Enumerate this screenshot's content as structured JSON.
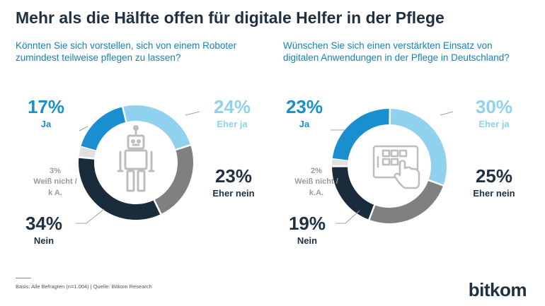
{
  "title": "Mehr als die Hälfte offen für digitale Helfer in der Pflege",
  "colors": {
    "ja": "#1a8fd0",
    "eher_ja": "#8fd1ee",
    "eher_nein": "#808080",
    "nein": "#1a2b3c",
    "weiss_nicht": "#e0e0e0",
    "question": "#1583b8",
    "dark": "#1f3042"
  },
  "icons": [
    "robot-icon",
    "tablet-hand-icon"
  ],
  "chart_data": [
    {
      "type": "pie",
      "donut": true,
      "title": "Könnten Sie sich vorstellen, sich von einem Roboter zumindest teilweise pflegen zu lassen?",
      "slices": [
        {
          "label": "Ja",
          "value": 17,
          "display": "17%"
        },
        {
          "label": "Eher ja",
          "value": 24,
          "display": "24%"
        },
        {
          "label": "Eher nein",
          "value": 23,
          "display": "23%"
        },
        {
          "label": "Nein",
          "value": 34,
          "display": "34%"
        },
        {
          "label": "Weiß nicht / k A.",
          "value": 3,
          "display": "3%"
        }
      ]
    },
    {
      "type": "pie",
      "donut": true,
      "title": "Wünschen Sie sich einen verstärkten Einsatz von digitalen Anwendungen in der Pflege in Deutschland?",
      "slices": [
        {
          "label": "Ja",
          "value": 23,
          "display": "23%"
        },
        {
          "label": "Eher ja",
          "value": 30,
          "display": "30%"
        },
        {
          "label": "Eher nein",
          "value": 25,
          "display": "25%"
        },
        {
          "label": "Nein",
          "value": 19,
          "display": "19%"
        },
        {
          "label": "Weiß nicht / k.A.",
          "value": 2,
          "display": "2%"
        }
      ]
    }
  ],
  "footer": "Basis: Alle Befragten (n=1.004) | Quelle: Bitkom Research",
  "logo": "bitkom"
}
